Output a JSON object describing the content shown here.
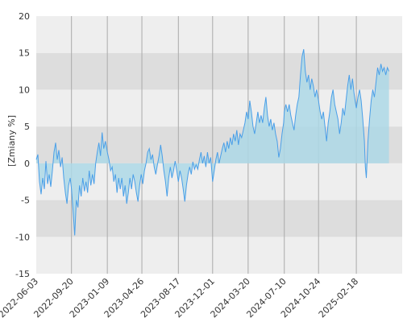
{
  "chart_data": {
    "type": "area",
    "ylabel": "[Zmiany %]",
    "ylim": [
      -15,
      20
    ],
    "yticks": [
      20,
      15,
      10,
      5,
      0,
      -5,
      -10,
      -15
    ],
    "ytick_labels": [
      "20",
      "15",
      "10",
      "5",
      "0",
      "-5",
      "-10",
      "-15"
    ],
    "xlim": [
      "2022-06-03",
      "2025-07-10"
    ],
    "xticks": [
      "2022-06-03",
      "2022-09-20",
      "2023-01-09",
      "2023-04-26",
      "2023-08-17",
      "2023-12-01",
      "2024-03-20",
      "2024-07-10",
      "2024-10-24",
      "2025-02-18"
    ],
    "grid": true,
    "baseline": 0,
    "colors": {
      "line": "#4a9fe8",
      "fill": "#add8e6",
      "band_dark": "#dddddd",
      "band_light": "#eeeeee",
      "gridline": "#aaaaaa"
    },
    "series": [
      {
        "points": [
          [
            "2022-06-03",
            0.5
          ],
          [
            "2022-06-08",
            1.2
          ],
          [
            "2022-06-13",
            -2.5
          ],
          [
            "2022-06-18",
            -4.2
          ],
          [
            "2022-06-23",
            -2.0
          ],
          [
            "2022-06-28",
            -3.5
          ],
          [
            "2022-07-03",
            0.3
          ],
          [
            "2022-07-08",
            -2.8
          ],
          [
            "2022-07-13",
            -1.5
          ],
          [
            "2022-07-18",
            -3.2
          ],
          [
            "2022-07-23",
            -1.0
          ],
          [
            "2022-07-28",
            1.5
          ],
          [
            "2022-08-02",
            2.8
          ],
          [
            "2022-08-07",
            0.5
          ],
          [
            "2022-08-12",
            1.8
          ],
          [
            "2022-08-17",
            -0.5
          ],
          [
            "2022-08-22",
            0.8
          ],
          [
            "2022-08-27",
            -2.0
          ],
          [
            "2022-09-01",
            -4.0
          ],
          [
            "2022-09-06",
            -5.5
          ],
          [
            "2022-09-11",
            -3.0
          ],
          [
            "2022-09-16",
            -2.0
          ],
          [
            "2022-09-20",
            -3.5
          ],
          [
            "2022-09-25",
            -6.5
          ],
          [
            "2022-09-30",
            -9.8
          ],
          [
            "2022-10-05",
            -5.0
          ],
          [
            "2022-10-10",
            -6.0
          ],
          [
            "2022-10-15",
            -3.0
          ],
          [
            "2022-10-20",
            -4.5
          ],
          [
            "2022-10-25",
            -2.0
          ],
          [
            "2022-10-30",
            -3.8
          ],
          [
            "2022-11-04",
            -2.5
          ],
          [
            "2022-11-09",
            -4.0
          ],
          [
            "2022-11-14",
            -1.0
          ],
          [
            "2022-11-19",
            -3.0
          ],
          [
            "2022-11-24",
            -1.5
          ],
          [
            "2022-11-29",
            -2.8
          ],
          [
            "2022-12-04",
            0.0
          ],
          [
            "2022-12-09",
            1.5
          ],
          [
            "2022-12-14",
            2.8
          ],
          [
            "2022-12-19",
            1.0
          ],
          [
            "2022-12-24",
            4.2
          ],
          [
            "2022-12-29",
            2.0
          ],
          [
            "2023-01-03",
            3.0
          ],
          [
            "2023-01-09",
            1.5
          ],
          [
            "2023-01-14",
            0.5
          ],
          [
            "2023-01-19",
            -1.0
          ],
          [
            "2023-01-24",
            -0.5
          ],
          [
            "2023-01-29",
            -2.5
          ],
          [
            "2023-02-03",
            -1.5
          ],
          [
            "2023-02-08",
            -4.0
          ],
          [
            "2023-02-13",
            -2.0
          ],
          [
            "2023-02-18",
            -3.5
          ],
          [
            "2023-02-23",
            -2.0
          ],
          [
            "2023-02-28",
            -4.5
          ],
          [
            "2023-03-05",
            -3.0
          ],
          [
            "2023-03-10",
            -5.5
          ],
          [
            "2023-03-15",
            -4.0
          ],
          [
            "2023-03-20",
            -2.0
          ],
          [
            "2023-03-25",
            -3.5
          ],
          [
            "2023-03-30",
            -1.5
          ],
          [
            "2023-04-04",
            -2.5
          ],
          [
            "2023-04-09",
            -4.0
          ],
          [
            "2023-04-14",
            -5.2
          ],
          [
            "2023-04-19",
            -3.0
          ],
          [
            "2023-04-24",
            -1.5
          ],
          [
            "2023-04-29",
            -2.8
          ],
          [
            "2023-05-04",
            -1.0
          ],
          [
            "2023-05-09",
            0.0
          ],
          [
            "2023-05-14",
            1.5
          ],
          [
            "2023-05-19",
            2.0
          ],
          [
            "2023-05-24",
            0.5
          ],
          [
            "2023-05-29",
            1.2
          ],
          [
            "2023-06-03",
            -0.5
          ],
          [
            "2023-06-08",
            -1.5
          ],
          [
            "2023-06-13",
            -0.2
          ],
          [
            "2023-06-18",
            1.0
          ],
          [
            "2023-06-23",
            2.5
          ],
          [
            "2023-06-28",
            1.0
          ],
          [
            "2023-07-03",
            -1.0
          ],
          [
            "2023-07-08",
            -2.5
          ],
          [
            "2023-07-13",
            -4.5
          ],
          [
            "2023-07-18",
            -2.0
          ],
          [
            "2023-07-23",
            -0.5
          ],
          [
            "2023-07-28",
            -2.0
          ],
          [
            "2023-08-02",
            -1.0
          ],
          [
            "2023-08-07",
            0.3
          ],
          [
            "2023-08-12",
            -1.0
          ],
          [
            "2023-08-17",
            -2.5
          ],
          [
            "2023-08-22",
            -1.0
          ],
          [
            "2023-08-27",
            -2.0
          ],
          [
            "2023-09-01",
            -3.5
          ],
          [
            "2023-09-06",
            -5.2
          ],
          [
            "2023-09-11",
            -3.0
          ],
          [
            "2023-09-16",
            -1.5
          ],
          [
            "2023-09-21",
            -0.5
          ],
          [
            "2023-09-26",
            -1.5
          ],
          [
            "2023-10-01",
            0.2
          ],
          [
            "2023-10-06",
            -0.8
          ],
          [
            "2023-10-11",
            -0.2
          ],
          [
            "2023-10-16",
            -0.8
          ],
          [
            "2023-10-21",
            0.5
          ],
          [
            "2023-10-26",
            1.5
          ],
          [
            "2023-10-31",
            0.0
          ],
          [
            "2023-11-05",
            1.0
          ],
          [
            "2023-11-10",
            -0.5
          ],
          [
            "2023-11-15",
            1.5
          ],
          [
            "2023-11-20",
            0.0
          ],
          [
            "2023-11-25",
            0.8
          ],
          [
            "2023-12-01",
            -2.5
          ],
          [
            "2023-12-06",
            -1.0
          ],
          [
            "2023-12-11",
            0.5
          ],
          [
            "2023-12-16",
            1.5
          ],
          [
            "2023-12-21",
            0.0
          ],
          [
            "2023-12-26",
            1.0
          ],
          [
            "2023-12-31",
            2.0
          ],
          [
            "2024-01-05",
            2.8
          ],
          [
            "2024-01-10",
            1.5
          ],
          [
            "2024-01-15",
            3.0
          ],
          [
            "2024-01-20",
            2.0
          ],
          [
            "2024-01-25",
            3.5
          ],
          [
            "2024-01-30",
            2.5
          ],
          [
            "2024-02-04",
            4.0
          ],
          [
            "2024-02-09",
            3.0
          ],
          [
            "2024-02-14",
            4.5
          ],
          [
            "2024-02-19",
            2.5
          ],
          [
            "2024-02-24",
            4.0
          ],
          [
            "2024-02-29",
            3.5
          ],
          [
            "2024-03-05",
            4.5
          ],
          [
            "2024-03-10",
            5.5
          ],
          [
            "2024-03-15",
            7.0
          ],
          [
            "2024-03-20",
            6.0
          ],
          [
            "2024-03-25",
            8.5
          ],
          [
            "2024-03-30",
            7.0
          ],
          [
            "2024-04-04",
            5.0
          ],
          [
            "2024-04-09",
            4.0
          ],
          [
            "2024-04-14",
            5.5
          ],
          [
            "2024-04-19",
            7.0
          ],
          [
            "2024-04-24",
            5.5
          ],
          [
            "2024-04-29",
            6.5
          ],
          [
            "2024-05-04",
            5.5
          ],
          [
            "2024-05-09",
            7.5
          ],
          [
            "2024-05-14",
            9.0
          ],
          [
            "2024-05-19",
            6.5
          ],
          [
            "2024-05-24",
            5.0
          ],
          [
            "2024-05-29",
            6.0
          ],
          [
            "2024-06-03",
            4.5
          ],
          [
            "2024-06-08",
            5.5
          ],
          [
            "2024-06-13",
            4.0
          ],
          [
            "2024-06-18",
            3.0
          ],
          [
            "2024-06-23",
            0.8
          ],
          [
            "2024-06-28",
            2.0
          ],
          [
            "2024-07-03",
            4.0
          ],
          [
            "2024-07-08",
            5.5
          ],
          [
            "2024-07-10",
            7.0
          ],
          [
            "2024-07-15",
            8.0
          ],
          [
            "2024-07-20",
            7.0
          ],
          [
            "2024-07-25",
            8.0
          ],
          [
            "2024-07-30",
            6.5
          ],
          [
            "2024-08-04",
            5.5
          ],
          [
            "2024-08-09",
            4.5
          ],
          [
            "2024-08-14",
            6.5
          ],
          [
            "2024-08-19",
            8.0
          ],
          [
            "2024-08-24",
            9.0
          ],
          [
            "2024-08-29",
            12.0
          ],
          [
            "2024-09-03",
            14.5
          ],
          [
            "2024-09-08",
            15.5
          ],
          [
            "2024-09-13",
            12.5
          ],
          [
            "2024-09-18",
            11.0
          ],
          [
            "2024-09-23",
            12.0
          ],
          [
            "2024-09-28",
            10.0
          ],
          [
            "2024-10-03",
            11.5
          ],
          [
            "2024-10-08",
            10.5
          ],
          [
            "2024-10-13",
            9.0
          ],
          [
            "2024-10-18",
            10.0
          ],
          [
            "2024-10-24",
            8.5
          ],
          [
            "2024-10-29",
            7.0
          ],
          [
            "2024-11-03",
            6.0
          ],
          [
            "2024-11-08",
            7.0
          ],
          [
            "2024-11-13",
            5.0
          ],
          [
            "2024-11-18",
            3.0
          ],
          [
            "2024-11-23",
            5.5
          ],
          [
            "2024-11-28",
            7.0
          ],
          [
            "2024-12-03",
            9.0
          ],
          [
            "2024-12-08",
            10.0
          ],
          [
            "2024-12-13",
            8.0
          ],
          [
            "2024-12-18",
            7.0
          ],
          [
            "2024-12-23",
            6.0
          ],
          [
            "2024-12-28",
            4.0
          ],
          [
            "2025-01-02",
            5.5
          ],
          [
            "2025-01-07",
            7.5
          ],
          [
            "2025-01-12",
            6.5
          ],
          [
            "2025-01-17",
            8.5
          ],
          [
            "2025-01-22",
            10.5
          ],
          [
            "2025-01-27",
            12.0
          ],
          [
            "2025-02-01",
            10.0
          ],
          [
            "2025-02-06",
            11.5
          ],
          [
            "2025-02-11",
            9.5
          ],
          [
            "2025-02-16",
            8.0
          ],
          [
            "2025-02-18",
            7.5
          ],
          [
            "2025-02-23",
            9.0
          ],
          [
            "2025-02-28",
            10.0
          ],
          [
            "2025-03-05",
            8.5
          ],
          [
            "2025-03-10",
            6.0
          ],
          [
            "2025-03-15",
            3.0
          ],
          [
            "2025-03-18",
            -0.5
          ],
          [
            "2025-03-21",
            -2.0
          ],
          [
            "2025-03-26",
            3.0
          ],
          [
            "2025-03-31",
            6.0
          ],
          [
            "2025-04-05",
            8.5
          ],
          [
            "2025-04-10",
            10.0
          ],
          [
            "2025-04-15",
            9.0
          ],
          [
            "2025-04-20",
            11.0
          ],
          [
            "2025-04-25",
            13.0
          ],
          [
            "2025-04-30",
            12.0
          ],
          [
            "2025-05-05",
            13.5
          ],
          [
            "2025-05-10",
            12.5
          ],
          [
            "2025-05-15",
            13.0
          ],
          [
            "2025-05-20",
            12.0
          ],
          [
            "2025-05-25",
            13.0
          ],
          [
            "2025-05-30",
            12.5
          ]
        ]
      }
    ]
  }
}
